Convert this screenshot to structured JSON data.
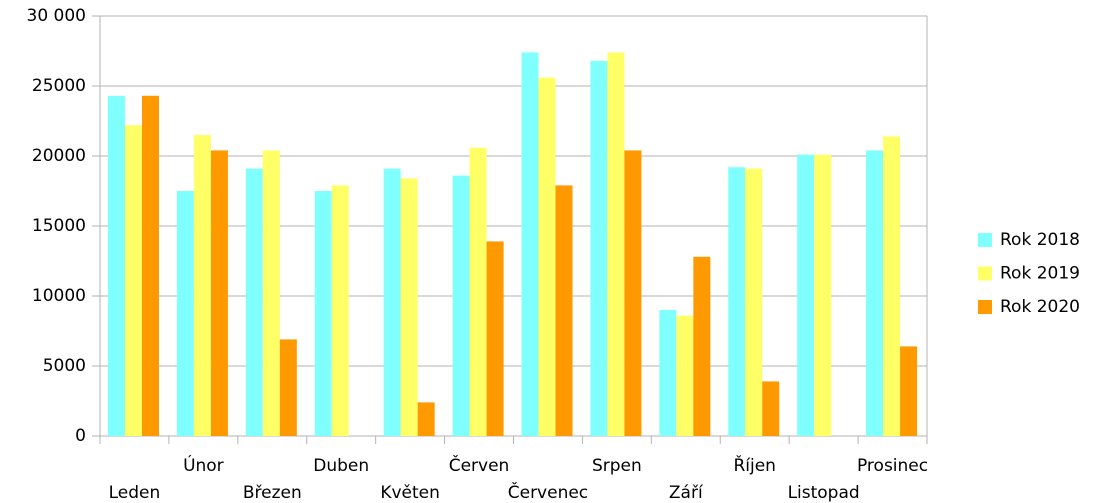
{
  "chart_data": {
    "type": "bar",
    "categories": [
      "Leden",
      "Únor",
      "Březen",
      "Duben",
      "Květen",
      "Červen",
      "Červenec",
      "Srpen",
      "Září",
      "Říjen",
      "Listopad",
      "Prosinec"
    ],
    "series": [
      {
        "name": "Rok 2018",
        "color": "#80ffff",
        "values": [
          24300,
          17500,
          19100,
          17500,
          19100,
          18600,
          27400,
          26800,
          9000,
          19200,
          20100,
          20400
        ]
      },
      {
        "name": "Rok 2019",
        "color": "#ffff66",
        "values": [
          22200,
          21500,
          20400,
          17900,
          18400,
          20600,
          25600,
          27400,
          8600,
          19100,
          20100,
          21400
        ]
      },
      {
        "name": "Rok 2020",
        "color": "#ff9900",
        "values": [
          24300,
          20400,
          6900,
          null,
          2400,
          13900,
          17900,
          20400,
          12800,
          3900,
          null,
          6400
        ]
      }
    ],
    "ylim": [
      0,
      30000
    ],
    "yticks": [
      0,
      5000,
      10000,
      15000,
      20000,
      25000,
      {
        "value": 30000,
        "label": "30 000"
      }
    ],
    "grid": true,
    "legend": "right"
  }
}
